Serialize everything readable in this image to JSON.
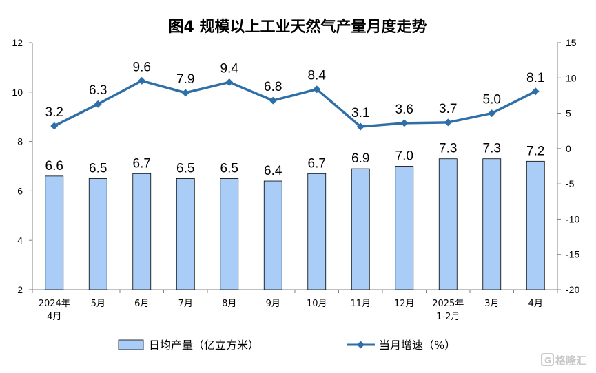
{
  "chart_data": {
    "type": "bar",
    "title": "图4  规模以上工业天然气产量月度走势",
    "categories": [
      [
        "2024年",
        "4月"
      ],
      [
        "5月"
      ],
      [
        "6月"
      ],
      [
        "7月"
      ],
      [
        "8月"
      ],
      [
        "9月"
      ],
      [
        "10月"
      ],
      [
        "11月"
      ],
      [
        "12月"
      ],
      [
        "2025年",
        "1-2月"
      ],
      [
        "3月"
      ],
      [
        "4月"
      ]
    ],
    "series": [
      {
        "name": "日均产量（亿立方米）",
        "type": "bar",
        "axis": "left",
        "color": "#a9cdf7",
        "values": [
          6.6,
          6.5,
          6.7,
          6.5,
          6.5,
          6.4,
          6.7,
          6.9,
          7.0,
          7.3,
          7.3,
          7.2
        ]
      },
      {
        "name": "当月增速（%）",
        "type": "line",
        "axis": "right",
        "color": "#2e6fa8",
        "values": [
          3.2,
          6.3,
          9.6,
          7.9,
          9.4,
          6.8,
          8.4,
          3.1,
          3.6,
          3.7,
          5.0,
          8.1
        ]
      }
    ],
    "y_left": {
      "min": 2,
      "max": 12,
      "ticks": [
        "2",
        "4",
        "6",
        "8",
        "10",
        "12"
      ]
    },
    "y_right": {
      "min": -20,
      "max": 15,
      "ticks": [
        "-20",
        "-15",
        "-10",
        "-5",
        "0",
        "5",
        "10",
        "15"
      ]
    },
    "grid": false,
    "legend_position": "bottom"
  },
  "watermark": {
    "text": "格隆汇",
    "icon": "g-logo-icon"
  }
}
